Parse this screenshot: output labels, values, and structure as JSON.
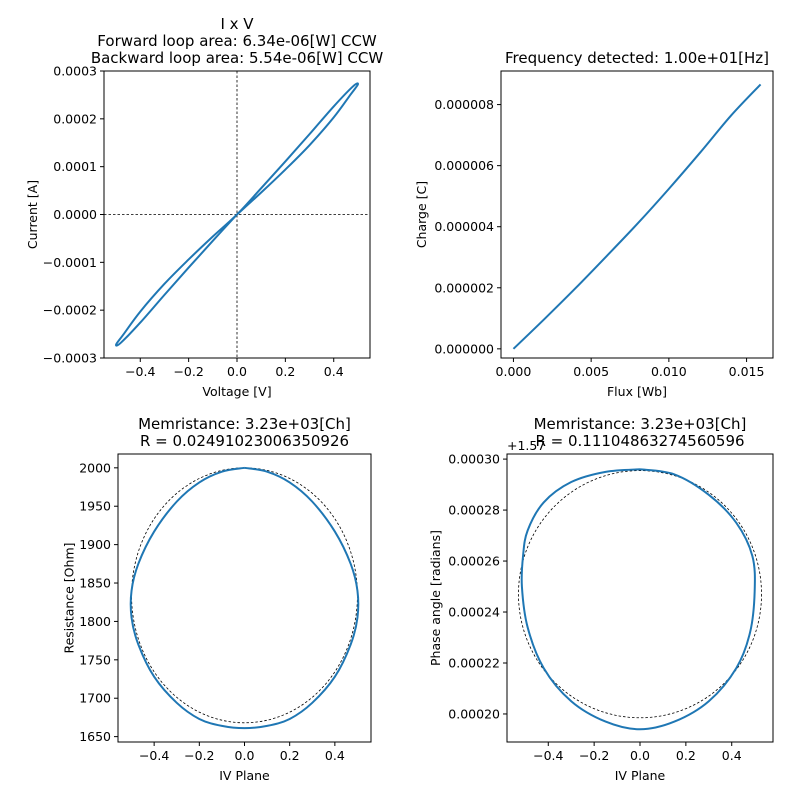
{
  "chart_data": [
    {
      "id": "iv",
      "type": "line",
      "title_lines": [
        "I x V",
        "Forward loop area: 6.34e-06[W] CCW",
        "Backward loop area: 5.54e-06[W] CCW"
      ],
      "xlabel": "Voltage [V]",
      "ylabel": "Current [A]",
      "xlim": [
        -0.55,
        0.55
      ],
      "ylim": [
        -0.0003,
        0.0003
      ],
      "xticks": [
        -0.4,
        -0.2,
        0.0,
        0.2,
        0.4
      ],
      "xtick_labels": [
        "−0.4",
        "−0.2",
        "0.0",
        "0.2",
        "0.4"
      ],
      "yticks": [
        -0.0003,
        -0.0002,
        -0.0001,
        0.0,
        0.0001,
        0.0002,
        0.0003
      ],
      "ytick_labels": [
        "−0.0003",
        "−0.0002",
        "−0.0001",
        "0.0000",
        "0.0001",
        "0.0002",
        "0.0003"
      ],
      "crosshair_at_origin": true,
      "series": [
        {
          "color": "#1f77b4",
          "x": [
            0,
            0.1,
            0.2,
            0.3,
            0.4,
            0.47,
            0.5,
            0.48,
            0.4,
            0.3,
            0.2,
            0.1,
            0,
            -0.1,
            -0.2,
            -0.3,
            -0.4,
            -0.47,
            -0.5,
            -0.48,
            -0.4,
            -0.3,
            -0.2,
            -0.1,
            0
          ],
          "y": [
            0,
            4.6e-05,
            9.4e-05,
            0.000145,
            0.000203,
            0.000251,
            0.000272,
            0.000268,
            0.000226,
            0.000168,
            0.000111,
            5.5e-05,
            0,
            -4.6e-05,
            -9.4e-05,
            -0.000145,
            -0.000203,
            -0.000251,
            -0.000272,
            -0.000268,
            -0.000226,
            -0.000168,
            -0.000111,
            -5.5e-05,
            0
          ]
        }
      ]
    },
    {
      "id": "charge-flux",
      "type": "line",
      "title_lines": [
        "Frequency detected: 1.00e+01[Hz]"
      ],
      "xlabel": "Flux [Wb]",
      "ylabel": "Charge [C]",
      "xlim": [
        -0.0008,
        0.0167
      ],
      "ylim": [
        -3e-07,
        9.1e-06
      ],
      "xticks": [
        0.0,
        0.005,
        0.01,
        0.015
      ],
      "xtick_labels": [
        "0.000",
        "0.005",
        "0.010",
        "0.015"
      ],
      "yticks": [
        0.0,
        2e-06,
        4e-06,
        6e-06,
        8e-06
      ],
      "ytick_labels": [
        "0.000000",
        "0.000002",
        "0.000004",
        "0.000006",
        "0.000008"
      ],
      "series": [
        {
          "color": "#1f77b4",
          "x": [
            0,
            0.002,
            0.004,
            0.006,
            0.008,
            0.01,
            0.012,
            0.014,
            0.0159
          ],
          "y": [
            0,
            9.8e-07,
            1.99e-06,
            3.04e-06,
            4.11e-06,
            5.24e-06,
            6.42e-06,
            7.64e-06,
            8.66e-06
          ]
        }
      ]
    },
    {
      "id": "resistance",
      "type": "line",
      "title_lines": [
        "Memristance: 3.23e+03[Ch]",
        "R = 0.02491023006350926"
      ],
      "xlabel": "IV Plane",
      "ylabel": "Resistance [Ohm]",
      "xlim": [
        -0.56,
        0.56
      ],
      "ylim": [
        1643,
        2018
      ],
      "xticks": [
        -0.4,
        -0.2,
        0.0,
        0.2,
        0.4
      ],
      "xtick_labels": [
        "−0.4",
        "−0.2",
        "0.0",
        "0.2",
        "0.4"
      ],
      "yticks": [
        1650,
        1700,
        1750,
        1800,
        1850,
        1900,
        1950,
        2000
      ],
      "ytick_labels": [
        "1650",
        "1700",
        "1750",
        "1800",
        "1850",
        "1900",
        "1950",
        "2000"
      ],
      "series": [
        {
          "color": "#1f77b4",
          "x": [
            0,
            0.1,
            0.2,
            0.3,
            0.4,
            0.47,
            0.5,
            0.5,
            0.47,
            0.4,
            0.3,
            0.2,
            0.1,
            0,
            -0.1,
            -0.2,
            -0.3,
            -0.4,
            -0.47,
            -0.5,
            -0.5,
            -0.47,
            -0.4,
            -0.3,
            -0.2,
            -0.1,
            0
          ],
          "y": [
            2000,
            1995,
            1981,
            1956,
            1917,
            1875,
            1840,
            1805,
            1770,
            1728,
            1694,
            1673,
            1664,
            1661,
            1664,
            1673,
            1694,
            1728,
            1770,
            1805,
            1840,
            1875,
            1917,
            1956,
            1981,
            1995,
            2000
          ]
        }
      ],
      "reference_circle": {
        "center_x": 0,
        "center_y": 1834,
        "radius_x": 0.5,
        "radius_y": 166
      }
    },
    {
      "id": "phase",
      "type": "line",
      "title_lines": [
        "Memristance: 3.23e+03[Ch]",
        "R = 0.11104863274560596"
      ],
      "xlabel": "IV Plane",
      "ylabel": "Phase angle [radians]",
      "offset_label": "+1.57",
      "xlim": [
        -0.58,
        0.58
      ],
      "ylim": [
        0.000189,
        0.000302
      ],
      "xticks": [
        -0.4,
        -0.2,
        0.0,
        0.2,
        0.4
      ],
      "xtick_labels": [
        "−0.4",
        "−0.2",
        "0.0",
        "0.2",
        "0.4"
      ],
      "yticks": [
        0.0002,
        0.00022,
        0.00024,
        0.00026,
        0.00028,
        0.0003
      ],
      "ytick_labels": [
        "0.00020",
        "0.00022",
        "0.00024",
        "0.00026",
        "0.00028",
        "0.00030"
      ],
      "series": [
        {
          "color": "#1f77b4",
          "x": [
            0,
            0.15,
            0.3,
            0.42,
            0.49,
            0.5,
            0.48,
            0.42,
            0.3,
            0.15,
            0,
            -0.15,
            -0.3,
            -0.42,
            -0.49,
            -0.515,
            -0.51,
            -0.49,
            -0.42,
            -0.3,
            -0.15,
            0
          ],
          "y": [
            0.000296,
            0.000294,
            0.000286,
            0.000275,
            0.000262,
            0.000248,
            0.000232,
            0.000218,
            0.000205,
            0.000197,
            0.000194,
            0.000197,
            0.000205,
            0.000218,
            0.000234,
            0.00025,
            0.000262,
            0.000272,
            0.000283,
            0.000291,
            0.000295,
            0.000296
          ]
        }
      ],
      "reference_circle": {
        "center_x": 0,
        "center_y": 0.000247,
        "radius_x": 0.53,
        "radius_y": 4.85e-05
      }
    }
  ]
}
